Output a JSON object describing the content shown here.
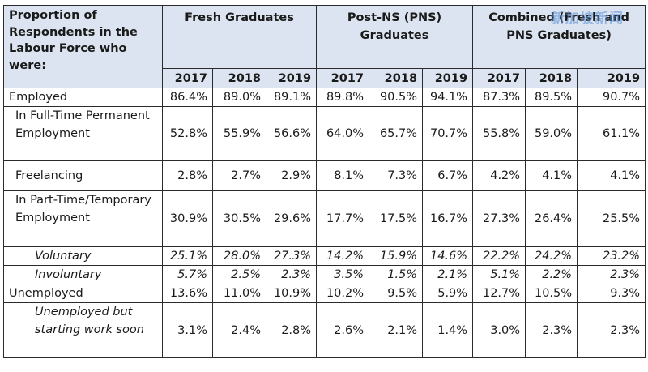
{
  "watermark": "新加坡新闻",
  "header": {
    "corner_label": "Proportion of Respondents in the Labour Force who were:",
    "groups": [
      "Fresh Graduates",
      "Post-NS (PNS) Graduates",
      "Combined (Fresh and PNS Graduates)"
    ],
    "years": [
      "2017",
      "2018",
      "2019",
      "2017",
      "2018",
      "2019",
      "2017",
      "2018",
      "2019"
    ]
  },
  "rows": [
    {
      "label": "Employed",
      "level": 0,
      "italic": false,
      "height": 23,
      "values": [
        "86.4%",
        "89.0%",
        "89.1%",
        "89.8%",
        "90.5%",
        "94.1%",
        "87.3%",
        "89.5%",
        "90.7%"
      ]
    },
    {
      "label": "In Full-Time Permanent Employment",
      "level": 1,
      "italic": false,
      "height": 67,
      "values": [
        "52.8%",
        "55.9%",
        "56.6%",
        "64.0%",
        "65.7%",
        "70.7%",
        "55.8%",
        "59.0%",
        "61.1%"
      ]
    },
    {
      "label": "Freelancing",
      "level": 1,
      "italic": false,
      "height": 37,
      "values": [
        "2.8%",
        "2.7%",
        "2.9%",
        "8.1%",
        "7.3%",
        "6.7%",
        "4.2%",
        "4.1%",
        "4.1%"
      ]
    },
    {
      "label": "In Part-Time/Temporary Employment",
      "level": 1,
      "italic": false,
      "height": 69,
      "values": [
        "30.9%",
        "30.5%",
        "29.6%",
        "17.7%",
        "17.5%",
        "16.7%",
        "27.3%",
        "26.4%",
        "25.5%"
      ]
    },
    {
      "label": "Voluntary",
      "level": 2,
      "italic": true,
      "height": 23,
      "values": [
        "25.1%",
        "28.0%",
        "27.3%",
        "14.2%",
        "15.9%",
        "14.6%",
        "22.2%",
        "24.2%",
        "23.2%"
      ]
    },
    {
      "label": "Involuntary",
      "level": 2,
      "italic": true,
      "height": 23,
      "values": [
        "5.7%",
        "2.5%",
        "2.3%",
        "3.5%",
        "1.5%",
        "2.1%",
        "5.1%",
        "2.2%",
        "2.3%"
      ]
    },
    {
      "label": "Unemployed",
      "level": 0,
      "italic": false,
      "height": 23,
      "values": [
        "13.6%",
        "11.0%",
        "10.9%",
        "10.2%",
        "9.5%",
        "5.9%",
        "12.7%",
        "10.5%",
        "9.3%"
      ]
    },
    {
      "label": "Unemployed but starting work soon",
      "level": 2,
      "italic": false,
      "height": 68,
      "values": [
        "3.1%",
        "2.4%",
        "2.8%",
        "2.6%",
        "2.1%",
        "1.4%",
        "3.0%",
        "2.3%",
        "2.3%"
      ]
    }
  ]
}
